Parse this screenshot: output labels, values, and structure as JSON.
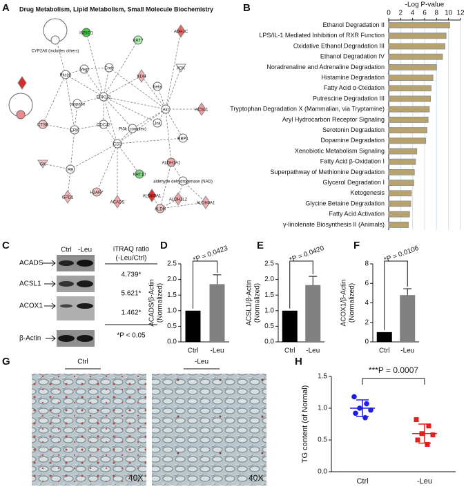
{
  "panel_labels": [
    "A",
    "B",
    "C",
    "D",
    "E",
    "F",
    "G",
    "H"
  ],
  "network": {
    "title": "Drug Metabolism, Lipid Metabolism, Small Molecule Biochemistry",
    "nodes": [
      "INSIG1",
      "KRT7",
      "ADH1C",
      "CYP2A6 (includes others)",
      "Pkc(s)",
      "Vegf",
      "Creb",
      "XDH",
      "ADK",
      "beta",
      "caspase",
      "ERK1/2",
      "Akt",
      "Jnk",
      "ACSL1",
      "CTSB",
      "ERK",
      "CDC42",
      "Pi3k (complex)",
      "CD3",
      "RBP1",
      "GK",
      "RB",
      "KRT10",
      "ALDH1A1",
      "aldehyde dehydrogenase (NAD)",
      "H2AFY",
      "GPD1",
      "ACADS",
      "ALDH3A1",
      "ALDH1L2",
      "ALDH4A1",
      "ALDH"
    ]
  },
  "blot": {
    "lanes": [
      "Ctrl",
      "-Leu"
    ],
    "table_header": [
      "iTRAQ ratio",
      "(-Leu/Ctrl)"
    ],
    "rows": [
      {
        "protein": "ACADS",
        "ratio": "4.739*"
      },
      {
        "protein": "ACSL1",
        "ratio": "5.621*"
      },
      {
        "protein": "ACOX1",
        "ratio": "1.462*"
      },
      {
        "protein": "β-Actin"
      }
    ],
    "footnote": "*P < 0.05"
  },
  "micrographs": {
    "conditions": [
      "Ctrl",
      "-Leu"
    ],
    "magnification": "40X"
  },
  "chart_data": [
    {
      "type": "barh",
      "xlabel": "-Log P-value",
      "categories": [
        "Ethanol Degradation II",
        "LPS/IL-1 Mediated Inhibition of RXR Function",
        "Oxidative Ethanol Degradation III",
        "Ethanol Degradation IV",
        "Noradrenaline and Adrenaline Degradation",
        "Histamine Degradation",
        "Fatty Acid α-Oxidation",
        "Putrescine Degradation III",
        "Tryptophan Degradation X (Mammalian, via Tryptamine)",
        "Aryl Hydrocarbon Receptor Signaling",
        "Serotonin Degradation",
        "Dopamine Degradation",
        "Xenobiotic Metabolism Signaling",
        "Fatty Acid β-Oxidation I",
        "Superpathway of Methionine Degradation",
        "Glycerol Degradation I",
        "Ketogenesis",
        "Glycine Betaine Degradation",
        "Fatty Acid Activation",
        "γ-linolenate Biosynthesis II (Animals)"
      ],
      "values": [
        10.2,
        9.6,
        9.4,
        9.0,
        8.0,
        7.4,
        7.1,
        7.0,
        6.8,
        6.6,
        6.4,
        6.2,
        4.7,
        4.5,
        4.3,
        4.2,
        3.8,
        3.7,
        3.5,
        3.3
      ],
      "color": "#b8a26e",
      "xlim": [
        0,
        12
      ],
      "xticks": [
        0,
        2,
        4,
        6,
        8,
        10,
        12
      ],
      "grid": true
    },
    {
      "type": "bar",
      "ylabel": [
        "ACADS/β-Actin",
        "(Normalized)"
      ],
      "categories": [
        "Ctrl",
        "-Leu"
      ],
      "values": [
        1,
        1.85
      ],
      "errors": [
        null,
        0.3
      ],
      "colors": [
        "#000000",
        "#808080"
      ],
      "ylim": [
        0,
        2.5
      ],
      "yticks": [
        {
          "value": 0,
          "label": "0.0"
        },
        {
          "value": 0.5,
          "label": "0.5"
        },
        {
          "value": 1,
          "label": "1.0"
        },
        {
          "value": 1.5,
          "label": "1.5"
        },
        {
          "value": 2,
          "label": "2.0"
        },
        {
          "value": 2.5,
          "label": "2.5"
        }
      ],
      "annotation": "*P = 0.0423"
    },
    {
      "type": "bar",
      "ylabel": [
        "ACSL1/β-Actin",
        "(Normalized)"
      ],
      "categories": [
        "Ctrl",
        "-Leu"
      ],
      "values": [
        1,
        1.82
      ],
      "errors": [
        null,
        0.28
      ],
      "colors": [
        "#000000",
        "#808080"
      ],
      "ylim": [
        0,
        2.5
      ],
      "yticks": [
        {
          "value": 0,
          "label": "0.0"
        },
        {
          "value": 0.5,
          "label": "0.5"
        },
        {
          "value": 1,
          "label": "1.0"
        },
        {
          "value": 1.5,
          "label": "1.5"
        },
        {
          "value": 2,
          "label": "2.0"
        },
        {
          "value": 2.5,
          "label": "2.5"
        }
      ],
      "annotation": "*P = 0.0420"
    },
    {
      "type": "bar",
      "ylabel": [
        "ACOX1/β-Actin",
        "(Normalized)"
      ],
      "categories": [
        "Ctrl",
        "-Leu"
      ],
      "values": [
        1,
        4.8
      ],
      "errors": [
        null,
        0.65
      ],
      "colors": [
        "#000000",
        "#808080"
      ],
      "ylim": [
        0,
        8
      ],
      "yticks": [
        0,
        2,
        4,
        6,
        8
      ],
      "annotation": "*P = 0.0106"
    },
    {
      "type": "scatter",
      "ylabel": "TG content (of Normal)",
      "categories": [
        "Ctrl",
        "-Leu"
      ],
      "points": [
        [
          1.18,
          1.07,
          1.0,
          0.97,
          0.92,
          0.85
        ],
        [
          0.82,
          0.72,
          0.6,
          0.58,
          0.5,
          0.43
        ]
      ],
      "means": [
        1.0,
        0.6
      ],
      "errors": [
        0.13,
        0.15
      ],
      "colors": [
        "#1f1fe0",
        "#e01f1f"
      ],
      "markers": [
        "circle",
        "square"
      ],
      "ylim": [
        0,
        1.5
      ],
      "yticks": [
        {
          "value": 0,
          "label": "0.0"
        },
        {
          "value": 0.5,
          "label": "0.5"
        },
        {
          "value": 1,
          "label": "1.0"
        },
        {
          "value": 1.5,
          "label": "1.5"
        }
      ],
      "annotation": "***P = 0.0007"
    }
  ]
}
